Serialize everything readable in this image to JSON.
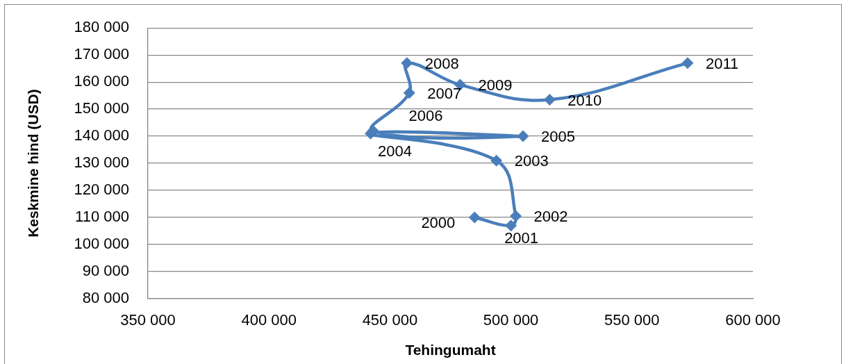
{
  "chart_data": {
    "type": "line",
    "xlabel": "Tehingumaht",
    "ylabel": "Keskmine hind (USD)",
    "x": [
      485000,
      500000,
      502000,
      494000,
      442000,
      505000,
      443000,
      458000,
      457000,
      479000,
      516000,
      573000
    ],
    "values": [
      110000,
      107000,
      110500,
      131000,
      141000,
      140000,
      142000,
      156000,
      167000,
      159000,
      153500,
      167000
    ],
    "color": "#4a7ebb",
    "marker": "diamond",
    "line_style": "solid",
    "grid": "y",
    "xlim": [
      350000,
      600000
    ],
    "xticks": [
      {
        "value": 350000,
        "label": "350 000"
      },
      {
        "value": 400000,
        "label": "400 000"
      },
      {
        "value": 450000,
        "label": "450 000"
      },
      {
        "value": 500000,
        "label": "500 000"
      },
      {
        "value": 550000,
        "label": "550 000"
      },
      {
        "value": 600000,
        "label": "600 000"
      }
    ],
    "ylim": [
      80000,
      180000
    ],
    "yticks": [
      {
        "value": 80000,
        "label": "80 000"
      },
      {
        "value": 90000,
        "label": "90 000"
      },
      {
        "value": 100000,
        "label": "100 000"
      },
      {
        "value": 110000,
        "label": "110 000"
      },
      {
        "value": 120000,
        "label": "120 000"
      },
      {
        "value": 130000,
        "label": "130 000"
      },
      {
        "value": 140000,
        "label": "140 000"
      },
      {
        "value": 150000,
        "label": "150 000"
      },
      {
        "value": 160000,
        "label": "160 000"
      },
      {
        "value": 170000,
        "label": "170 000"
      },
      {
        "value": 180000,
        "label": "180 000"
      }
    ],
    "annotations": [
      {
        "text": "2000",
        "x": 485000,
        "y": 110000
      },
      {
        "text": "2001",
        "x": 500000,
        "y": 107000
      },
      {
        "text": "2002",
        "x": 502000,
        "y": 110500
      },
      {
        "text": "2003",
        "x": 494000,
        "y": 131000
      },
      {
        "text": "2004",
        "x": 442000,
        "y": 141000
      },
      {
        "text": "2005",
        "x": 505000,
        "y": 140000
      },
      {
        "text": "2006",
        "x": 443000,
        "y": 142000
      },
      {
        "text": "2007",
        "x": 458000,
        "y": 156000
      },
      {
        "text": "2008",
        "x": 457000,
        "y": 167000
      },
      {
        "text": "2009",
        "x": 479000,
        "y": 159000
      },
      {
        "text": "2010",
        "x": 516000,
        "y": 153500
      },
      {
        "text": "2011",
        "x": 573000,
        "y": 167000
      }
    ]
  }
}
